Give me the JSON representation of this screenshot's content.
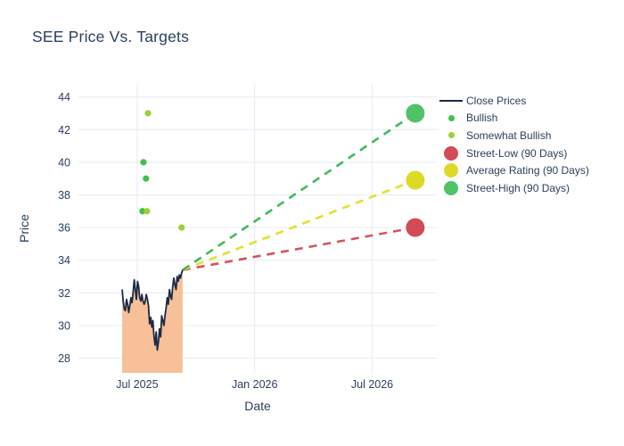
{
  "title": "SEE Price Vs. Targets",
  "colors": {
    "text": "#2a3f5f",
    "background": "#ffffff",
    "grid": "#e9edf4",
    "close_line": "#1c2a45",
    "close_fill": "#f8c098",
    "bullish": "#3fc14e",
    "somewhat_bullish": "#9bd133",
    "street_low": "#d24b56",
    "average_rating": "#ddda27",
    "street_high": "#50c268",
    "dash_low": "#d4545e",
    "dash_avg": "#e4e02a",
    "dash_high": "#41b957"
  },
  "legend": {
    "items": [
      {
        "label": "Close Prices",
        "marker": "line",
        "color": "#1c2a45"
      },
      {
        "label": "Bullish",
        "marker": "dot-small",
        "color": "#3fc14e"
      },
      {
        "label": "Somewhat Bullish",
        "marker": "dot-small",
        "color": "#9bd133"
      },
      {
        "label": "Street-Low (90 Days)",
        "marker": "dot-large",
        "color": "#d24b56"
      },
      {
        "label": "Average Rating (90 Days)",
        "marker": "dot-large",
        "color": "#ddda27"
      },
      {
        "label": "Street-High (90 Days)",
        "marker": "dot-large",
        "color": "#50c268"
      }
    ]
  },
  "chart_data": {
    "type": "line",
    "title": "SEE Price Vs. Targets",
    "xlabel": "Date",
    "ylabel": "Price",
    "grid": true,
    "legend_position": "right",
    "x_axis": {
      "unit": "months_since_2025-01-01",
      "range": [
        3.0,
        21.3
      ],
      "ticks": [
        {
          "label": "Jul 2025",
          "x": 6
        },
        {
          "label": "Jan 2026",
          "x": 12
        },
        {
          "label": "Jul 2026",
          "x": 18
        }
      ]
    },
    "y_axis": {
      "range": [
        27.1,
        44.8
      ],
      "ticks": [
        28,
        30,
        32,
        34,
        36,
        38,
        40,
        42,
        44
      ]
    },
    "close_prices": {
      "name": "Close Prices",
      "x_start": 5.23,
      "x_end": 8.32,
      "values": [
        32.2,
        31.5,
        31.0,
        30.9,
        31.6,
        31.3,
        30.8,
        31.2,
        31.7,
        31.4,
        32.0,
        32.8,
        32.2,
        31.6,
        32.7,
        32.4,
        31.7,
        31.5,
        31.9,
        31.5,
        31.3,
        31.5,
        31.9,
        31.6,
        31.2,
        30.1,
        30.5,
        29.9,
        30.3,
        29.3,
        28.8,
        29.6,
        28.5,
        29.0,
        29.8,
        29.3,
        30.6,
        30.3,
        30.0,
        30.6,
        31.1,
        31.7,
        31.3,
        32.2,
        31.8,
        31.6,
        32.4,
        32.9,
        32.5,
        32.2,
        33.0,
        32.7,
        33.1,
        32.9,
        33.2,
        33.4
      ],
      "last_value": 33.4
    },
    "ratings": [
      {
        "type": "Somewhat Bullish",
        "x": 6.55,
        "y": 43
      },
      {
        "type": "Bullish",
        "x": 6.32,
        "y": 40
      },
      {
        "type": "Bullish",
        "x": 6.45,
        "y": 39
      },
      {
        "type": "Bullish",
        "x": 6.27,
        "y": 37
      },
      {
        "type": "Somewhat Bullish",
        "x": 6.5,
        "y": 37
      },
      {
        "type": "Somewhat Bullish",
        "x": 8.27,
        "y": 36
      }
    ],
    "targets": [
      {
        "name": "Street-Low (90 Days)",
        "key": "street-low",
        "x": 20.2,
        "y": 36.0
      },
      {
        "name": "Average Rating (90 Days)",
        "key": "average-rating",
        "x": 20.2,
        "y": 38.9
      },
      {
        "name": "Street-High (90 Days)",
        "key": "street-high",
        "x": 20.2,
        "y": 43.0
      }
    ],
    "projection_origin": {
      "x": 8.32,
      "y": 33.4
    }
  }
}
